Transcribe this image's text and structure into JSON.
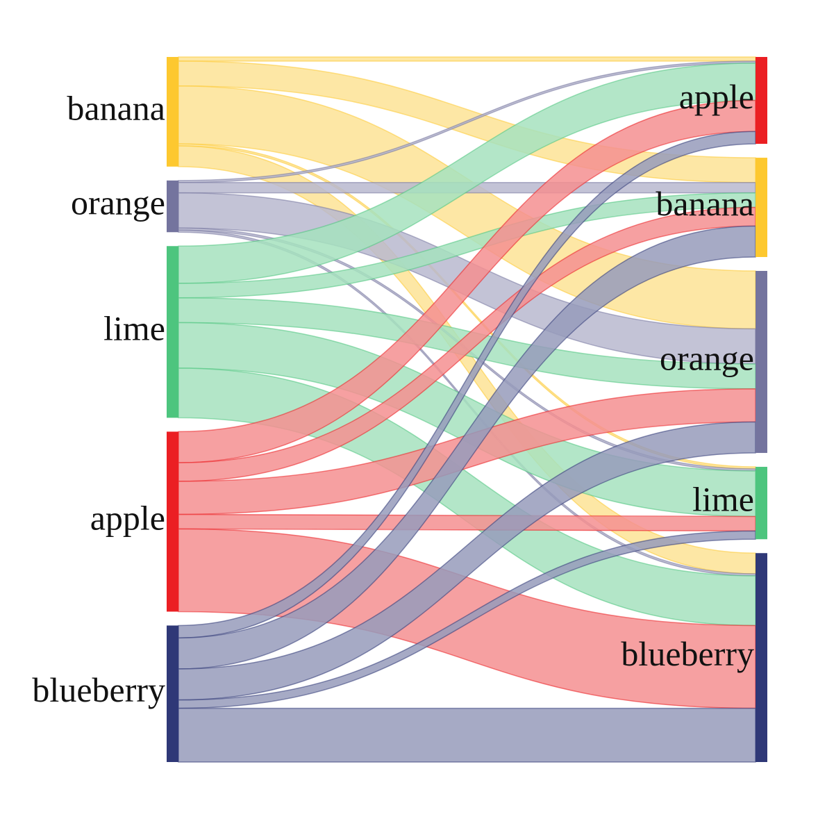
{
  "chart_data": {
    "type": "sankey",
    "title": "",
    "nodes": [
      {
        "id": "L-banana",
        "label": "banana",
        "side": "left",
        "color": "#FDC82F",
        "link_color": "#FDE395"
      },
      {
        "id": "L-orange",
        "label": "orange",
        "side": "left",
        "color": "#74749E",
        "link_color": "#B9B9CF"
      },
      {
        "id": "L-lime",
        "label": "lime",
        "side": "left",
        "color": "#4DC57E",
        "link_color": "#A6E2BE"
      },
      {
        "id": "L-apple",
        "label": "apple",
        "side": "left",
        "color": "#EB1F23",
        "link_color": "#F58F91"
      },
      {
        "id": "L-blueberry",
        "label": "blueberry",
        "side": "left",
        "color": "#2F3877",
        "link_color": "#979BBB"
      },
      {
        "id": "R-apple",
        "label": "apple",
        "side": "right",
        "color": "#EB1F23"
      },
      {
        "id": "R-banana",
        "label": "banana",
        "side": "right",
        "color": "#FDC82F"
      },
      {
        "id": "R-orange",
        "label": "orange",
        "side": "right",
        "color": "#74749E"
      },
      {
        "id": "R-lime",
        "label": "lime",
        "side": "right",
        "color": "#4DC57E"
      },
      {
        "id": "R-blueberry",
        "label": "blueberry",
        "side": "right",
        "color": "#2F3877"
      }
    ],
    "links": [
      {
        "source": "L-banana",
        "target": "R-apple",
        "value": 1
      },
      {
        "source": "L-banana",
        "target": "R-banana",
        "value": 6
      },
      {
        "source": "L-banana",
        "target": "R-orange",
        "value": 14
      },
      {
        "source": "L-banana",
        "target": "R-lime",
        "value": 0.5
      },
      {
        "source": "L-banana",
        "target": "R-blueberry",
        "value": 5
      },
      {
        "source": "L-orange",
        "target": "R-apple",
        "value": 0.5
      },
      {
        "source": "L-orange",
        "target": "R-banana",
        "value": 2.5
      },
      {
        "source": "L-orange",
        "target": "R-orange",
        "value": 8.5
      },
      {
        "source": "L-orange",
        "target": "R-lime",
        "value": 0.5
      },
      {
        "source": "L-orange",
        "target": "R-blueberry",
        "value": 0.5
      },
      {
        "source": "L-lime",
        "target": "R-apple",
        "value": 9
      },
      {
        "source": "L-lime",
        "target": "R-banana",
        "value": 3.5
      },
      {
        "source": "L-lime",
        "target": "R-orange",
        "value": 6
      },
      {
        "source": "L-lime",
        "target": "R-lime",
        "value": 11
      },
      {
        "source": "L-lime",
        "target": "R-blueberry",
        "value": 12
      },
      {
        "source": "L-apple",
        "target": "R-apple",
        "value": 7.5
      },
      {
        "source": "L-apple",
        "target": "R-banana",
        "value": 4.5
      },
      {
        "source": "L-apple",
        "target": "R-orange",
        "value": 8
      },
      {
        "source": "L-apple",
        "target": "R-lime",
        "value": 3.5
      },
      {
        "source": "L-apple",
        "target": "R-blueberry",
        "value": 20
      },
      {
        "source": "L-blueberry",
        "target": "R-apple",
        "value": 3
      },
      {
        "source": "L-blueberry",
        "target": "R-banana",
        "value": 7.5
      },
      {
        "source": "L-blueberry",
        "target": "R-orange",
        "value": 7.5
      },
      {
        "source": "L-blueberry",
        "target": "R-lime",
        "value": 2
      },
      {
        "source": "L-blueberry",
        "target": "R-blueberry",
        "value": 13
      }
    ]
  }
}
